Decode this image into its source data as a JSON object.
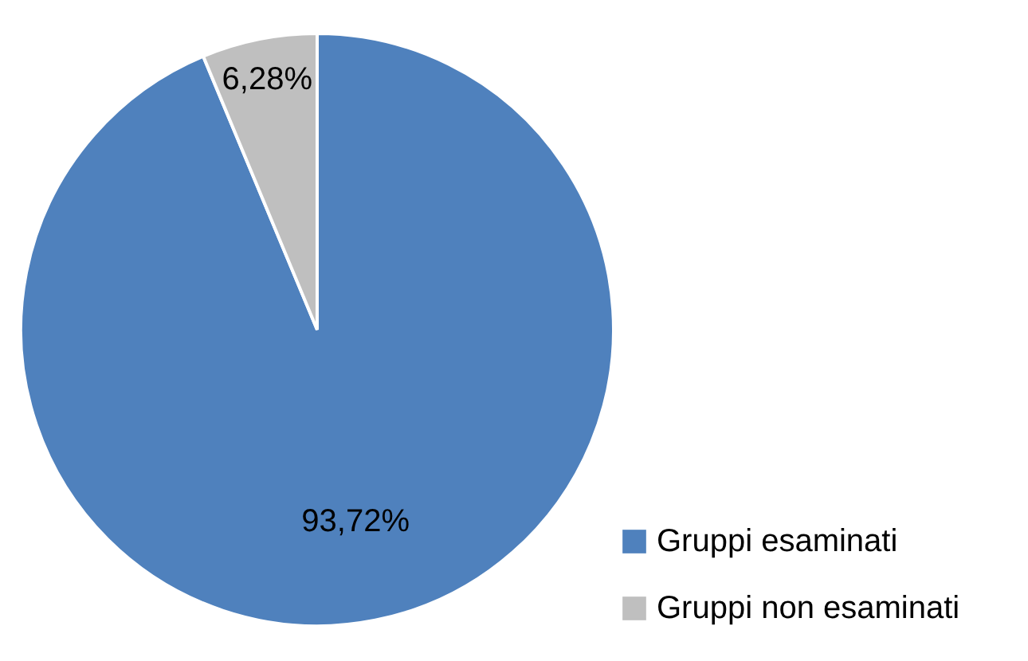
{
  "chart_data": {
    "type": "pie",
    "categories": [
      "Gruppi esaminati",
      "Gruppi non esaminati"
    ],
    "values": [
      93.72,
      6.28
    ],
    "colors": [
      "#4f81bd",
      "#bfbfbf"
    ],
    "value_labels": [
      "93,72%",
      "6,28%"
    ],
    "legend": "bottom right"
  }
}
